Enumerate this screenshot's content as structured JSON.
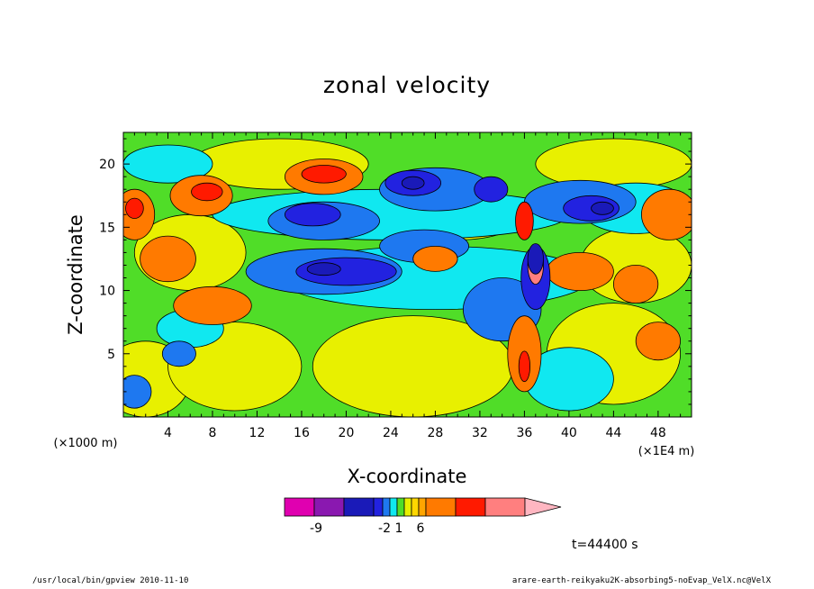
{
  "chart_data": {
    "type": "heatmap",
    "title": "zonal velocity",
    "xlabel": "X-coordinate",
    "ylabel": "Z-coordinate",
    "x_unit_label": "(×1E4 m)",
    "y_unit_label": "(×1000 m)",
    "xlim": [
      0,
      51
    ],
    "ylim": [
      0,
      22.5
    ],
    "x_ticks": [
      4,
      8,
      12,
      16,
      20,
      24,
      28,
      32,
      36,
      40,
      44,
      48
    ],
    "y_ticks": [
      5,
      10,
      15,
      20
    ],
    "colorbar": {
      "colors": [
        "#e000b0",
        "#8a18b0",
        "#1a1ab8",
        "#2222e0",
        "#1e78f0",
        "#10e8f0",
        "#50dd28",
        "#e8f000",
        "#ffd700",
        "#ffa500",
        "#ff7a00",
        "#ff1a00",
        "#ff7f7f",
        "#ffb6c1"
      ],
      "tick_labels": [
        "-9",
        "-2",
        "1",
        "6"
      ],
      "tick_bounds": [
        1,
        4,
        6,
        9
      ],
      "extend": "max"
    },
    "blobs": [
      {
        "x": 2,
        "z": 3,
        "rx": 4,
        "ry": 3,
        "v": 1
      },
      {
        "x": 10,
        "z": 4,
        "rx": 6,
        "ry": 3.5,
        "v": 1
      },
      {
        "x": 26,
        "z": 4,
        "rx": 9,
        "ry": 4,
        "v": 1
      },
      {
        "x": 44,
        "z": 5,
        "rx": 6,
        "ry": 4,
        "v": 1
      },
      {
        "x": 6,
        "z": 13,
        "rx": 5,
        "ry": 3,
        "v": 1
      },
      {
        "x": 30,
        "z": 16,
        "rx": 6,
        "ry": 2,
        "v": 1
      },
      {
        "x": 46,
        "z": 12,
        "rx": 5,
        "ry": 3,
        "v": 1
      },
      {
        "x": 14,
        "z": 20,
        "rx": 8,
        "ry": 2,
        "v": 1
      },
      {
        "x": 44,
        "z": 20,
        "rx": 7,
        "ry": 2,
        "v": 1
      },
      {
        "x": 1,
        "z": 16,
        "rx": 1.8,
        "ry": 2,
        "v": 4
      },
      {
        "x": 7,
        "z": 17.5,
        "rx": 2.8,
        "ry": 1.6,
        "v": 4
      },
      {
        "x": 18,
        "z": 19,
        "rx": 3.5,
        "ry": 1.4,
        "v": 4
      },
      {
        "x": 4,
        "z": 12.5,
        "rx": 2.5,
        "ry": 1.8,
        "v": 4
      },
      {
        "x": 8,
        "z": 8.8,
        "rx": 3.5,
        "ry": 1.5,
        "v": 4
      },
      {
        "x": 36,
        "z": 5,
        "rx": 1.5,
        "ry": 3,
        "v": 4
      },
      {
        "x": 41,
        "z": 11.5,
        "rx": 3,
        "ry": 1.5,
        "v": 4
      },
      {
        "x": 46,
        "z": 10.5,
        "rx": 2,
        "ry": 1.5,
        "v": 4
      },
      {
        "x": 49,
        "z": 16,
        "rx": 2.5,
        "ry": 2,
        "v": 4
      },
      {
        "x": 48,
        "z": 6,
        "rx": 2,
        "ry": 1.5,
        "v": 4
      },
      {
        "x": 28,
        "z": 12.5,
        "rx": 2,
        "ry": 1,
        "v": 4
      },
      {
        "x": 36,
        "z": 15.5,
        "rx": 0.8,
        "ry": 1.5,
        "v": 5
      },
      {
        "x": 18,
        "z": 19.2,
        "rx": 2,
        "ry": 0.7,
        "v": 5
      },
      {
        "x": 1,
        "z": 16.5,
        "rx": 0.8,
        "ry": 0.8,
        "v": 5
      },
      {
        "x": 7.5,
        "z": 17.8,
        "rx": 1.4,
        "ry": 0.7,
        "v": 5
      },
      {
        "x": 36,
        "z": 4,
        "rx": 0.5,
        "ry": 1.2,
        "v": 5
      },
      {
        "x": 37,
        "z": 12,
        "rx": 0.7,
        "ry": 1.5,
        "v": 6
      },
      {
        "x": 24,
        "z": 16,
        "rx": 16,
        "ry": 2,
        "v": -1
      },
      {
        "x": 28,
        "z": 11,
        "rx": 14,
        "ry": 2.5,
        "v": -1
      },
      {
        "x": 40,
        "z": 3,
        "rx": 4,
        "ry": 2.5,
        "v": -1
      },
      {
        "x": 46,
        "z": 16.5,
        "rx": 5,
        "ry": 2,
        "v": -1
      },
      {
        "x": 4,
        "z": 20,
        "rx": 4,
        "ry": 1.5,
        "v": -1
      },
      {
        "x": 6,
        "z": 7,
        "rx": 3,
        "ry": 1.5,
        "v": -1
      },
      {
        "x": 18,
        "z": 11.5,
        "rx": 7,
        "ry": 1.8,
        "v": -3
      },
      {
        "x": 18,
        "z": 15.5,
        "rx": 5,
        "ry": 1.5,
        "v": -3
      },
      {
        "x": 27,
        "z": 13.5,
        "rx": 4,
        "ry": 1.3,
        "v": -3
      },
      {
        "x": 34,
        "z": 8.5,
        "rx": 3.5,
        "ry": 2.5,
        "v": -3
      },
      {
        "x": 28,
        "z": 18,
        "rx": 5,
        "ry": 1.7,
        "v": -3
      },
      {
        "x": 41,
        "z": 17,
        "rx": 5,
        "ry": 1.7,
        "v": -3
      },
      {
        "x": 1,
        "z": 2,
        "rx": 1.5,
        "ry": 1.3,
        "v": -3
      },
      {
        "x": 5,
        "z": 5,
        "rx": 1.5,
        "ry": 1,
        "v": -3
      },
      {
        "x": 20,
        "z": 11.5,
        "rx": 4.5,
        "ry": 1.1,
        "v": -5
      },
      {
        "x": 17,
        "z": 16,
        "rx": 2.5,
        "ry": 0.9,
        "v": -5
      },
      {
        "x": 26,
        "z": 18.5,
        "rx": 2.5,
        "ry": 1,
        "v": -5
      },
      {
        "x": 37,
        "z": 11,
        "rx": 1.3,
        "ry": 2.5,
        "v": -5
      },
      {
        "x": 42,
        "z": 16.5,
        "rx": 2.5,
        "ry": 1,
        "v": -5
      },
      {
        "x": 33,
        "z": 18,
        "rx": 1.5,
        "ry": 1,
        "v": -5
      },
      {
        "x": 37,
        "z": 12.5,
        "rx": 0.7,
        "ry": 1.2,
        "v": -8
      },
      {
        "x": 18,
        "z": 11.7,
        "rx": 1.5,
        "ry": 0.5,
        "v": -8
      },
      {
        "x": 26,
        "z": 18.5,
        "rx": 1,
        "ry": 0.5,
        "v": -8
      },
      {
        "x": 43,
        "z": 16.5,
        "rx": 1,
        "ry": 0.5,
        "v": -8
      }
    ],
    "annotation": "t=44400 s"
  },
  "footer": {
    "left": "/usr/local/bin/gpview  2010-11-10",
    "right": "arare-earth-reikyaku2K-absorbing5-noEvap_VelX.nc@VelX"
  }
}
